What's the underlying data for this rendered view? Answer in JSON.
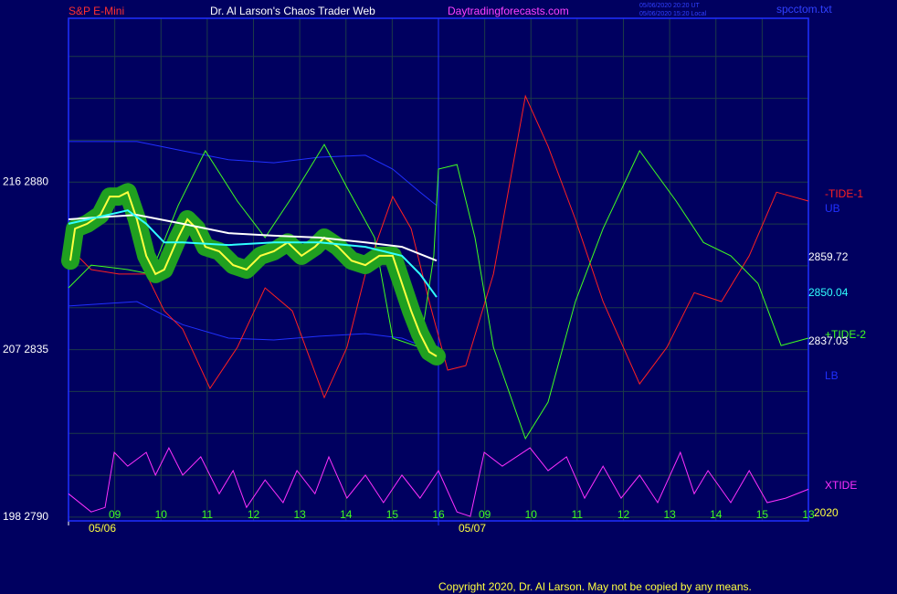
{
  "chart_data": {
    "type": "line",
    "title": "Dr. Al Larson's Chaos Trader Web",
    "subtitle": "S&P E-Mini",
    "source": "Daytradingforecasts.com",
    "xlim": [
      0,
      16
    ],
    "ylim": [
      2789,
      2924
    ],
    "grid": true,
    "xticks": [
      {
        "value": 1,
        "label": "09"
      },
      {
        "value": 2,
        "label": "10"
      },
      {
        "value": 3,
        "label": "11"
      },
      {
        "value": 4,
        "label": "12"
      },
      {
        "value": 5,
        "label": "13"
      },
      {
        "value": 6,
        "label": "14"
      },
      {
        "value": 7,
        "label": "15"
      },
      {
        "value": 8,
        "label": "16"
      },
      {
        "value": 9,
        "label": "09"
      },
      {
        "value": 10,
        "label": "10"
      },
      {
        "value": 11,
        "label": "11"
      },
      {
        "value": 12,
        "label": "12"
      },
      {
        "value": 13,
        "label": "13"
      },
      {
        "value": 14,
        "label": "14"
      },
      {
        "value": 15,
        "label": "15"
      },
      {
        "value": 16,
        "label": "13"
      }
    ],
    "dates": [
      {
        "value": 0,
        "label": "05/06"
      },
      {
        "value": 8,
        "label": "05/07"
      }
    ],
    "yticks": [
      {
        "value": 2790,
        "label": "198  2790"
      },
      {
        "value": 2801.25,
        "label": null
      },
      {
        "value": 2812.5,
        "label": null
      },
      {
        "value": 2823.75,
        "label": null
      },
      {
        "value": 2835,
        "label": "207  2835"
      },
      {
        "value": 2846.25,
        "label": null
      },
      {
        "value": 2857.5,
        "label": null
      },
      {
        "value": 2868.75,
        "label": null
      },
      {
        "value": 2880,
        "label": "216  2880"
      },
      {
        "value": 2891.25,
        "label": null
      },
      {
        "value": 2902.5,
        "label": null
      },
      {
        "value": 2913.75,
        "label": null
      }
    ],
    "series": [
      {
        "name": "UB",
        "color": "#2030ff",
        "x": [
          0,
          1.48,
          2.47,
          3.46,
          4.44,
          5.43,
          6.42,
          7.01,
          7.6,
          7.96
        ],
        "values": [
          2890.9,
          2890.9,
          2888.4,
          2886,
          2885.2,
          2886.7,
          2887.2,
          2883.5,
          2877.3,
          2873.7
        ]
      },
      {
        "name": "LB",
        "color": "#2030ff",
        "x": [
          0,
          1.48,
          2.47,
          3.46,
          4.44,
          5.43,
          6.42,
          7.21,
          7.96
        ],
        "values": [
          2846.7,
          2847.9,
          2841.7,
          2838.1,
          2837.6,
          2838.6,
          2839.3,
          2838.1,
          2834.4
        ]
      },
      {
        "name": "-TIDE-1",
        "color": "#ff2020",
        "x": [
          0,
          0.49,
          1.09,
          1.68,
          2.07,
          2.47,
          3.06,
          3.65,
          4.25,
          4.84,
          5.53,
          6.02,
          6.42,
          7.01,
          7.41,
          7.8,
          8.2,
          8.59,
          9.19,
          9.88,
          10.37,
          10.96,
          11.56,
          12.35,
          12.94,
          13.53,
          14.12,
          14.72,
          15.31,
          16
        ],
        "values": [
          2862.6,
          2856.5,
          2855.3,
          2855.3,
          2845.4,
          2840.5,
          2824.6,
          2835.6,
          2851.6,
          2845.4,
          2822.1,
          2835.6,
          2855.3,
          2876.1,
          2867.5,
          2847.9,
          2829.5,
          2830.7,
          2855.3,
          2903.1,
          2889.6,
          2870,
          2847.9,
          2825.8,
          2835.6,
          2850.3,
          2847.9,
          2860.2,
          2877.3,
          2874.9
        ]
      },
      {
        "name": "+TIDE-2",
        "color": "#40ff20",
        "x": [
          0,
          0.49,
          1.28,
          1.78,
          2.37,
          2.96,
          3.65,
          4.25,
          4.84,
          5.53,
          6.02,
          6.62,
          7.01,
          7.6,
          7.9,
          8,
          8.4,
          8.79,
          9.19,
          9.88,
          10.37,
          10.96,
          11.56,
          12.35,
          13.14,
          13.73,
          14.32,
          14.91,
          15.41,
          16
        ],
        "values": [
          2851.6,
          2857.7,
          2856.5,
          2855.3,
          2873.7,
          2888.4,
          2874.9,
          2865.1,
          2876.1,
          2890.1,
          2878.6,
          2865.1,
          2838.1,
          2835.6,
          2860.2,
          2883.5,
          2884.7,
          2865.1,
          2835.6,
          2811.1,
          2820.9,
          2847.9,
          2867.5,
          2888.4,
          2874.9,
          2863.8,
          2860.2,
          2852.8,
          2836.1,
          2838.1
        ]
      },
      {
        "name": "XTIDE",
        "color": "#ff30ff",
        "x": [
          0,
          0.49,
          0.79,
          0.99,
          1.28,
          1.68,
          1.88,
          2.17,
          2.47,
          2.86,
          3.26,
          3.56,
          3.85,
          4.25,
          4.64,
          4.94,
          5.33,
          5.63,
          6.02,
          6.42,
          6.81,
          7.21,
          7.6,
          8,
          8.4,
          8.69,
          8.99,
          9.38,
          9.98,
          10.37,
          10.77,
          11.16,
          11.56,
          11.95,
          12.35,
          12.74,
          13.23,
          13.53,
          13.83,
          14.32,
          14.72,
          15.11,
          15.51,
          16
        ],
        "values": [
          2796.3,
          2791.4,
          2792.6,
          2807.4,
          2803.7,
          2807.4,
          2801.3,
          2808.6,
          2801.3,
          2806.2,
          2796.3,
          2802.5,
          2792.6,
          2800,
          2793.9,
          2802.5,
          2796.3,
          2806.2,
          2795.1,
          2801.3,
          2793.9,
          2801.3,
          2795.1,
          2802.5,
          2791.4,
          2790.2,
          2807.4,
          2803.7,
          2808.6,
          2802.5,
          2806.2,
          2795.1,
          2803.7,
          2795.1,
          2801.3,
          2793.9,
          2807.4,
          2796.3,
          2802.5,
          2793.9,
          2802.5,
          2793.9,
          2795.1,
          2797.5
        ]
      },
      {
        "color": "#ffff40",
        "x": [
          0.04,
          0.14,
          0.4,
          0.69,
          0.89,
          1.09,
          1.28,
          1.48,
          1.68,
          1.88,
          2.07,
          2.37,
          2.57,
          2.77,
          2.96,
          3.26,
          3.56,
          3.85,
          4.15,
          4.44,
          4.74,
          5.04,
          5.33,
          5.53,
          5.83,
          6.12,
          6.42,
          6.72,
          7.01,
          7.21,
          7.41,
          7.6,
          7.8,
          7.96
        ],
        "values": [
          2858.9,
          2867.5,
          2868.8,
          2871.2,
          2876.1,
          2876.1,
          2877.3,
          2870,
          2860.2,
          2855.3,
          2856.5,
          2865.1,
          2870,
          2867.5,
          2862.6,
          2861.4,
          2857.7,
          2856.5,
          2860.2,
          2861.4,
          2863.8,
          2860.2,
          2862.6,
          2865.1,
          2862.6,
          2858.9,
          2857.7,
          2860.2,
          2860.2,
          2852.8,
          2845.4,
          2839.3,
          2834.4,
          2833.2
        ]
      },
      {
        "color": "#ffffff",
        "x": [
          0,
          1.48,
          2.47,
          3.46,
          4.44,
          5.43,
          6.42,
          7.21,
          7.96
        ],
        "values": [
          2870,
          2871.2,
          2868.8,
          2866.3,
          2865.6,
          2865.1,
          2863.8,
          2862.6,
          2858.9
        ]
      },
      {
        "color": "#30ffff",
        "x": [
          0,
          1.28,
          1.68,
          2.07,
          2.47,
          3.46,
          4.44,
          5.43,
          6.42,
          7.21,
          7.6,
          7.96
        ],
        "values": [
          2868.8,
          2872.4,
          2868.8,
          2863.8,
          2863.8,
          2863.1,
          2863.8,
          2863.8,
          2862.6,
          2860.2,
          2855.3,
          2849.1
        ]
      }
    ],
    "annotations": [
      {
        "text": "2859.72",
        "color": "#ffffff"
      },
      {
        "text": "2850.04",
        "color": "#30ffff"
      },
      {
        "text": "2837.03",
        "color": "#ffffff"
      },
      {
        "text": "2020",
        "color": "#ffff40"
      },
      {
        "text": "05/06/2020 20:20 UT",
        "color": "#3040ff"
      },
      {
        "text": "05/06/2020 15:20 Local",
        "color": "#3040ff"
      },
      {
        "text": "spcctom.txt",
        "color": "#3040ff"
      },
      {
        "text": "Copyright 2020, Dr. Al Larson. May not be copied by any means.",
        "color": "#ffff40"
      }
    ]
  }
}
